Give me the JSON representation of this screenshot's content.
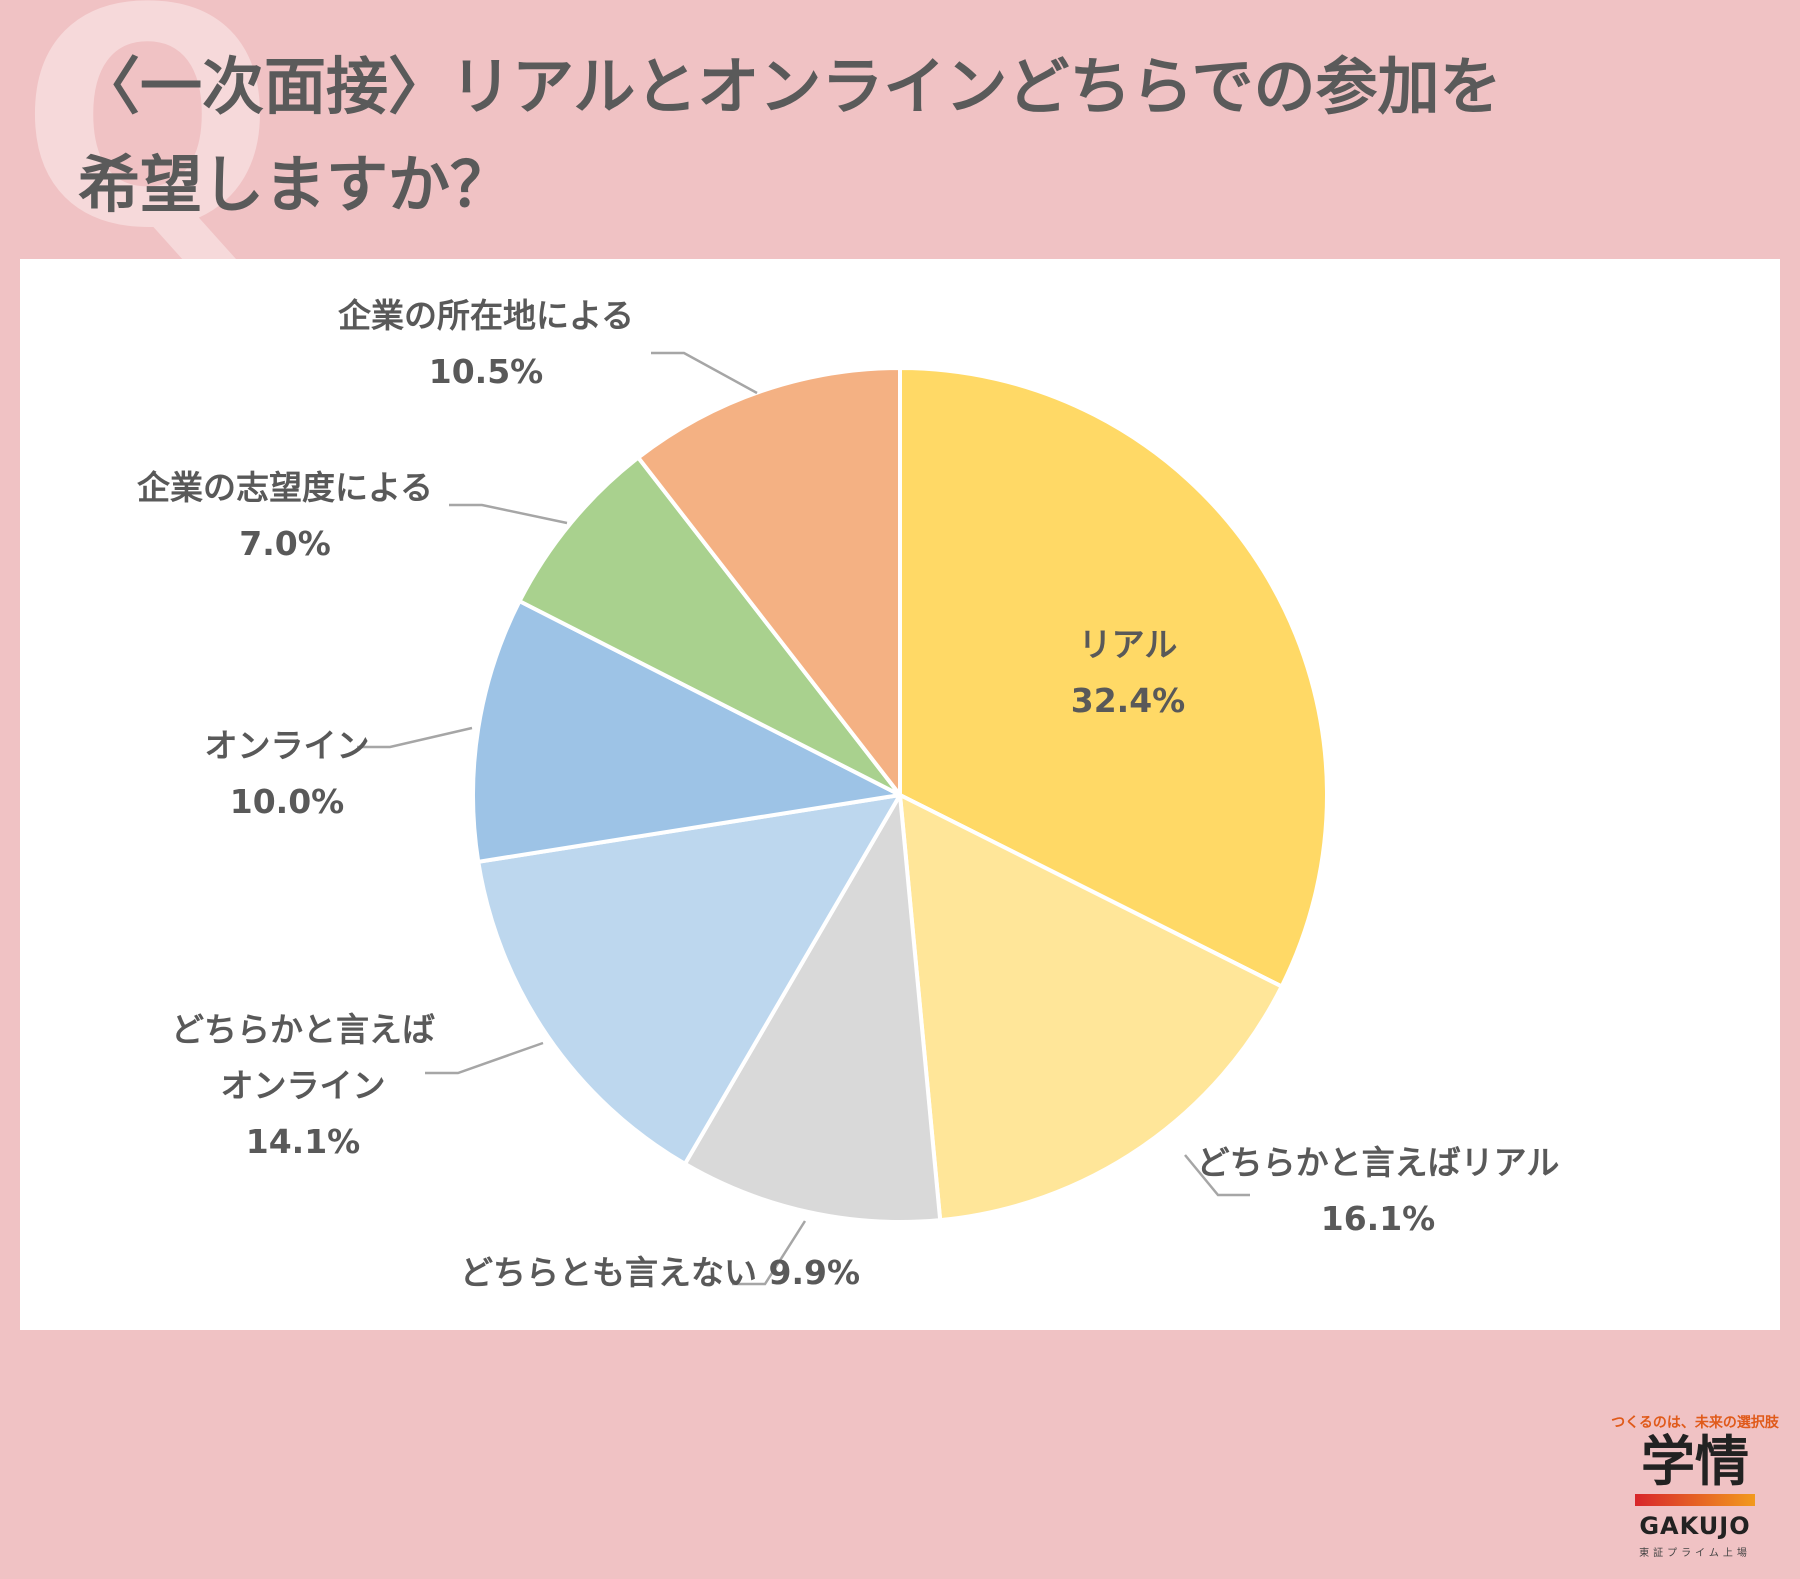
{
  "title": {
    "line1": "〈一次面接〉リアルとオンラインどちらでの参加を",
    "line2": "希望しますか？"
  },
  "watermark": "Q",
  "brand": {
    "tagline": "つくるのは、未来の選択肢",
    "name_kanji": "学情",
    "name_latin": "GAKUJO",
    "listing": "東証プライム上場"
  },
  "colors": {
    "background": "#f0c2c4",
    "panel": "#ffffff",
    "title_text": "#5a5a5a",
    "label_text": "#595959",
    "leader_line": "#a6a6a6"
  },
  "chart_data": {
    "type": "pie",
    "start_angle_deg": 0,
    "direction": "clockwise",
    "slices": [
      {
        "label_lines": [
          "リアル"
        ],
        "value": 32.4,
        "value_label": "32.4%",
        "color": "#ffd966",
        "label_placement": "inside"
      },
      {
        "label_lines": [
          "どちらかと言えばリアル"
        ],
        "value": 16.1,
        "value_label": "16.1%",
        "color": "#ffe699",
        "label_placement": "outside"
      },
      {
        "label_lines": [
          "どちらとも言えない"
        ],
        "value": 9.9,
        "value_label": "9.9%",
        "color": "#d9d9d9",
        "label_placement": "outside"
      },
      {
        "label_lines": [
          "どちらかと言えば",
          "オンライン"
        ],
        "value": 14.1,
        "value_label": "14.1%",
        "color": "#bdd7ee",
        "label_placement": "outside"
      },
      {
        "label_lines": [
          "オンライン"
        ],
        "value": 10.0,
        "value_label": "10.0%",
        "color": "#9dc3e6",
        "label_placement": "outside"
      },
      {
        "label_lines": [
          "企業の志望度による"
        ],
        "value": 7.0,
        "value_label": "7.0%",
        "color": "#a9d18e",
        "label_placement": "outside"
      },
      {
        "label_lines": [
          "企業の所在地による"
        ],
        "value": 10.5,
        "value_label": "10.5%",
        "color": "#f4b183",
        "label_placement": "outside"
      }
    ]
  }
}
